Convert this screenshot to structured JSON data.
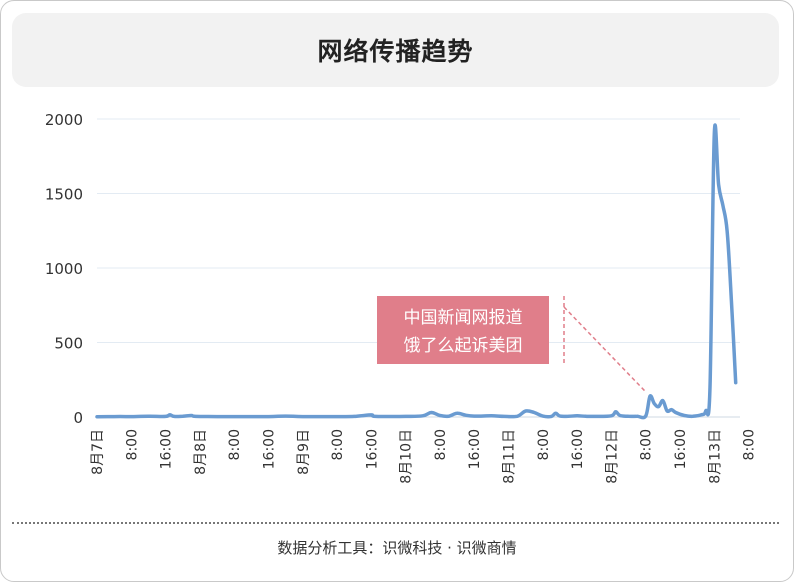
{
  "footer": "数据分析工具：识微科技 · 识微商情",
  "chart_data": {
    "type": "line",
    "title": "网络传播趋势",
    "xlabel": "",
    "ylabel": "",
    "ylim": [
      0,
      2000
    ],
    "yticks": [
      0,
      500,
      1000,
      1500,
      2000
    ],
    "grid": true,
    "x_tick_labels": [
      "8月7日",
      "8:00",
      "16:00",
      "8月8日",
      "8:00",
      "16:00",
      "8月9日",
      "8:00",
      "16:00",
      "8月10日",
      "8:00",
      "16:00",
      "8月11日",
      "8:00",
      "16:00",
      "8月12日",
      "8:00",
      "16:00",
      "8月13日",
      "8:00"
    ],
    "x_range_hours": [
      0,
      150
    ],
    "series": [
      {
        "color": "#6a9bd1",
        "points": [
          [
            0,
            2
          ],
          [
            4,
            3
          ],
          [
            8,
            3
          ],
          [
            12,
            5
          ],
          [
            16,
            4
          ],
          [
            17,
            15
          ],
          [
            18,
            4
          ],
          [
            20,
            5
          ],
          [
            22,
            10
          ],
          [
            23,
            4
          ],
          [
            28,
            3
          ],
          [
            32,
            3
          ],
          [
            40,
            3
          ],
          [
            44,
            6
          ],
          [
            48,
            3
          ],
          [
            56,
            3
          ],
          [
            60,
            4
          ],
          [
            64,
            14
          ],
          [
            65,
            4
          ],
          [
            72,
            4
          ],
          [
            76,
            8
          ],
          [
            78,
            30
          ],
          [
            80,
            10
          ],
          [
            82,
            5
          ],
          [
            84,
            25
          ],
          [
            86,
            12
          ],
          [
            88,
            6
          ],
          [
            92,
            8
          ],
          [
            95,
            4
          ],
          [
            98,
            5
          ],
          [
            100,
            40
          ],
          [
            102,
            30
          ],
          [
            104,
            6
          ],
          [
            106,
            4
          ],
          [
            107,
            25
          ],
          [
            108,
            6
          ],
          [
            110,
            5
          ],
          [
            112,
            8
          ],
          [
            114,
            5
          ],
          [
            116,
            4
          ],
          [
            120,
            8
          ],
          [
            121,
            35
          ],
          [
            122,
            10
          ],
          [
            124,
            5
          ],
          [
            126,
            5
          ],
          [
            128,
            6
          ],
          [
            129,
            140
          ],
          [
            130,
            90
          ],
          [
            131,
            70
          ],
          [
            132,
            110
          ],
          [
            133,
            40
          ],
          [
            134,
            50
          ],
          [
            135,
            30
          ],
          [
            137,
            10
          ],
          [
            139,
            5
          ],
          [
            141,
            15
          ],
          [
            142,
            40
          ],
          [
            143,
            200
          ],
          [
            144,
            1900
          ],
          [
            145,
            1560
          ],
          [
            146,
            1420
          ],
          [
            147,
            1250
          ],
          [
            148,
            780
          ],
          [
            149,
            230
          ]
        ]
      }
    ],
    "annotation": {
      "text_lines": [
        "中国新闻网报道",
        "饿了么起诉美团"
      ],
      "color": "#e07e8a",
      "target_x": 129,
      "target_y": 140
    }
  }
}
